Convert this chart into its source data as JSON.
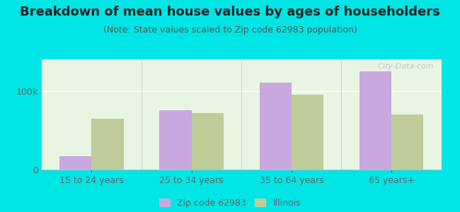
{
  "title": "Breakdown of mean house values by ages of householders",
  "subtitle": "(Note: State values scaled to Zip code 62983 population)",
  "categories": [
    "15 to 24 years",
    "25 to 34 years",
    "35 to 64 years",
    "65 years+"
  ],
  "zip_values": [
    17000,
    75000,
    110000,
    125000
  ],
  "il_values": [
    65000,
    72000,
    95000,
    70000
  ],
  "zip_color": "#c9a8e0",
  "il_color": "#bfcc99",
  "background_color": "#00e5e5",
  "plot_bg_top": "#e8f5e3",
  "plot_bg_bottom": "#f5fff5",
  "ylim": [
    0,
    140000
  ],
  "yticks": [
    0,
    100000
  ],
  "ytick_labels": [
    "0",
    "100k"
  ],
  "legend_zip_label": "Zip code 62983",
  "legend_il_label": "Illinois",
  "bar_width": 0.32,
  "title_fontsize": 13,
  "subtitle_fontsize": 9,
  "tick_fontsize": 9,
  "legend_fontsize": 9,
  "title_color": "#222222",
  "subtitle_color": "#555555",
  "tick_color": "#666666"
}
